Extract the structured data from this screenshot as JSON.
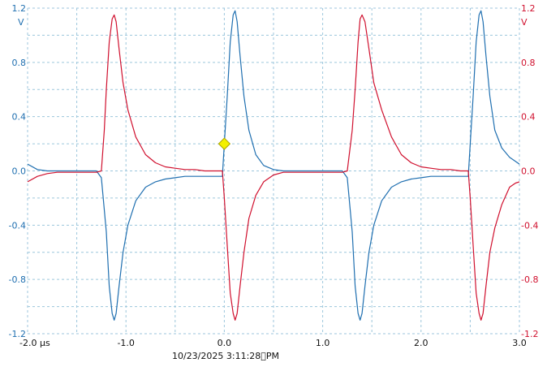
{
  "timestamp": "10/23/2025 3:11:28\u0000PM",
  "colors": {
    "background": "#ffffff",
    "grid": "#9cc6dc",
    "channel_a": "#1f6fb0",
    "channel_b": "#d0102e",
    "trigger_marker": "#f3f000"
  },
  "chart_data": {
    "type": "line",
    "title": "",
    "xlabel": "",
    "ylabel_left_unit": "V",
    "ylabel_right_unit": "V",
    "xlim": [
      -2.0,
      3.0
    ],
    "ylim": [
      -1.2,
      1.2
    ],
    "grid": true,
    "x_ticks": [
      "-2.0 μs",
      "-1.0",
      "0.0",
      "1.0",
      "2.0",
      "3.0"
    ],
    "x_tick_values": [
      -2.0,
      -1.0,
      0.0,
      1.0,
      2.0,
      3.0
    ],
    "y_ticks_left": [
      "1.2",
      "0.8",
      "0.4",
      "0.0",
      "-0.4",
      "-0.8",
      "-1.2"
    ],
    "y_ticks_right": [
      "1.2",
      "0.8",
      "0.4",
      "0.0",
      "-0.4",
      "-0.8",
      "-1.2"
    ],
    "y_tick_values": [
      1.2,
      0.8,
      0.4,
      0.0,
      -0.4,
      -0.8,
      -1.2
    ],
    "trigger": {
      "x": 0.0,
      "y": 0.2
    },
    "series": [
      {
        "color": "#1f6fb0",
        "x": [
          -2.0,
          -1.9,
          -1.8,
          -1.7,
          -1.6,
          -1.5,
          -1.4,
          -1.3,
          -1.25,
          -1.2,
          -1.17,
          -1.14,
          -1.12,
          -1.1,
          -1.07,
          -1.03,
          -0.98,
          -0.9,
          -0.8,
          -0.7,
          -0.6,
          -0.5,
          -0.4,
          -0.3,
          -0.2,
          -0.1,
          -0.02,
          0.0,
          0.03,
          0.06,
          0.09,
          0.11,
          0.13,
          0.16,
          0.2,
          0.25,
          0.32,
          0.4,
          0.5,
          0.6,
          0.7,
          0.8,
          0.9,
          1.0,
          1.1,
          1.2,
          1.25,
          1.3,
          1.33,
          1.36,
          1.38,
          1.4,
          1.43,
          1.47,
          1.52,
          1.6,
          1.7,
          1.8,
          1.9,
          2.0,
          2.1,
          2.2,
          2.3,
          2.4,
          2.48,
          2.5,
          2.53,
          2.56,
          2.59,
          2.61,
          2.63,
          2.66,
          2.7,
          2.75,
          2.82,
          2.9,
          2.96,
          3.0
        ],
        "y": [
          0.05,
          0.01,
          0.0,
          0.0,
          0.0,
          0.0,
          0.0,
          0.0,
          -0.05,
          -0.45,
          -0.85,
          -1.05,
          -1.1,
          -1.05,
          -0.85,
          -0.6,
          -0.4,
          -0.22,
          -0.12,
          -0.08,
          -0.06,
          -0.05,
          -0.04,
          -0.04,
          -0.04,
          -0.04,
          -0.04,
          0.2,
          0.55,
          0.95,
          1.15,
          1.18,
          1.1,
          0.85,
          0.55,
          0.3,
          0.12,
          0.04,
          0.01,
          0.0,
          0.0,
          0.0,
          0.0,
          0.0,
          0.0,
          0.0,
          -0.05,
          -0.45,
          -0.85,
          -1.05,
          -1.1,
          -1.05,
          -0.85,
          -0.6,
          -0.4,
          -0.22,
          -0.12,
          -0.08,
          -0.06,
          -0.05,
          -0.04,
          -0.04,
          -0.04,
          -0.04,
          -0.04,
          0.2,
          0.55,
          0.95,
          1.15,
          1.18,
          1.1,
          0.85,
          0.55,
          0.3,
          0.17,
          0.1,
          0.07,
          0.05
        ]
      },
      {
        "color": "#d0102e",
        "x": [
          -2.0,
          -1.9,
          -1.8,
          -1.7,
          -1.6,
          -1.5,
          -1.4,
          -1.3,
          -1.25,
          -1.22,
          -1.2,
          -1.17,
          -1.14,
          -1.12,
          -1.1,
          -1.07,
          -1.03,
          -0.98,
          -0.9,
          -0.8,
          -0.7,
          -0.6,
          -0.5,
          -0.4,
          -0.3,
          -0.2,
          -0.1,
          -0.02,
          0.0,
          0.03,
          0.06,
          0.09,
          0.11,
          0.13,
          0.16,
          0.2,
          0.25,
          0.32,
          0.4,
          0.5,
          0.6,
          0.7,
          0.8,
          0.9,
          1.0,
          1.1,
          1.2,
          1.25,
          1.3,
          1.33,
          1.36,
          1.38,
          1.4,
          1.43,
          1.47,
          1.52,
          1.6,
          1.7,
          1.8,
          1.9,
          2.0,
          2.1,
          2.2,
          2.3,
          2.4,
          2.48,
          2.5,
          2.53,
          2.56,
          2.59,
          2.61,
          2.63,
          2.66,
          2.7,
          2.75,
          2.82,
          2.9,
          2.96,
          3.0
        ],
        "y": [
          -0.08,
          -0.04,
          -0.02,
          -0.01,
          -0.01,
          -0.01,
          -0.01,
          -0.01,
          0.0,
          0.3,
          0.6,
          0.95,
          1.12,
          1.15,
          1.1,
          0.9,
          0.65,
          0.45,
          0.25,
          0.12,
          0.06,
          0.03,
          0.02,
          0.01,
          0.01,
          0.0,
          0.0,
          0.0,
          -0.2,
          -0.55,
          -0.9,
          -1.05,
          -1.1,
          -1.05,
          -0.85,
          -0.6,
          -0.35,
          -0.18,
          -0.08,
          -0.03,
          -0.01,
          -0.01,
          -0.01,
          -0.01,
          -0.01,
          -0.01,
          -0.01,
          0.0,
          0.3,
          0.6,
          0.95,
          1.12,
          1.15,
          1.1,
          0.9,
          0.65,
          0.45,
          0.25,
          0.12,
          0.06,
          0.03,
          0.02,
          0.01,
          0.01,
          0.0,
          0.0,
          -0.2,
          -0.55,
          -0.9,
          -1.05,
          -1.1,
          -1.05,
          -0.85,
          -0.6,
          -0.42,
          -0.25,
          -0.12,
          -0.09,
          -0.08
        ]
      }
    ]
  }
}
